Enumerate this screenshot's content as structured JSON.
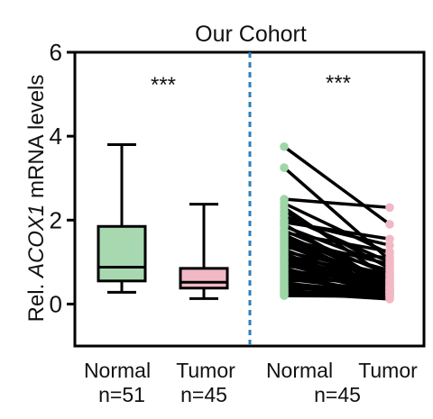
{
  "chart_data": {
    "type": "box",
    "title": "Our Cohort",
    "ylabel": {
      "prefix": "Rel. ",
      "gene": "ACOX1",
      "suffix": " mRNA levels"
    },
    "ylim": [
      -1,
      6
    ],
    "yticks": [
      0,
      2,
      4,
      6
    ],
    "grid": false,
    "groups": [
      {
        "label": "Normal",
        "n_label": "n=51",
        "fill": "#a8d8b0",
        "box": {
          "whisker_low": 0.28,
          "q1": 0.55,
          "median": 0.88,
          "q3": 1.85,
          "whisker_high": 3.8
        },
        "significance": "***"
      },
      {
        "label": "Tumor",
        "n_label": "n=45",
        "fill": "#f2b8c6",
        "box": {
          "whisker_low": 0.13,
          "q1": 0.38,
          "median": 0.52,
          "q3": 0.85,
          "whisker_high": 2.38
        }
      }
    ],
    "paired": {
      "labels": [
        "Normal",
        "Tumor"
      ],
      "n_label": "n=45",
      "normal_color": "#9fd6a8",
      "tumor_color": "#f2b8c6",
      "line_color": "#000000",
      "significance": "***",
      "pairs": [
        [
          3.75,
          1.9
        ],
        [
          3.25,
          1.05
        ],
        [
          2.5,
          2.3
        ],
        [
          2.4,
          1.2
        ],
        [
          2.3,
          0.6
        ],
        [
          2.2,
          0.85
        ],
        [
          2.1,
          1.0
        ],
        [
          2.0,
          1.4
        ],
        [
          1.95,
          1.55
        ],
        [
          1.9,
          0.45
        ],
        [
          1.85,
          0.9
        ],
        [
          1.75,
          0.7
        ],
        [
          1.7,
          1.25
        ],
        [
          1.65,
          0.55
        ],
        [
          1.6,
          0.4
        ],
        [
          1.55,
          0.95
        ],
        [
          1.5,
          0.8
        ],
        [
          1.45,
          0.6
        ],
        [
          1.4,
          0.5
        ],
        [
          1.35,
          1.1
        ],
        [
          1.3,
          0.35
        ],
        [
          1.25,
          0.7
        ],
        [
          1.2,
          0.3
        ],
        [
          1.15,
          0.65
        ],
        [
          1.1,
          0.45
        ],
        [
          1.05,
          0.55
        ],
        [
          1.0,
          0.4
        ],
        [
          0.95,
          0.3
        ],
        [
          0.9,
          0.75
        ],
        [
          0.85,
          0.25
        ],
        [
          0.8,
          0.5
        ],
        [
          0.75,
          0.35
        ],
        [
          0.7,
          0.2
        ],
        [
          0.65,
          0.45
        ],
        [
          0.6,
          0.3
        ],
        [
          0.55,
          0.6
        ],
        [
          0.5,
          0.25
        ],
        [
          0.45,
          0.35
        ],
        [
          0.42,
          0.15
        ],
        [
          0.38,
          0.28
        ],
        [
          0.34,
          0.4
        ],
        [
          0.3,
          0.2
        ],
        [
          0.27,
          0.12
        ],
        [
          0.24,
          0.3
        ],
        [
          0.2,
          0.18
        ]
      ]
    }
  }
}
